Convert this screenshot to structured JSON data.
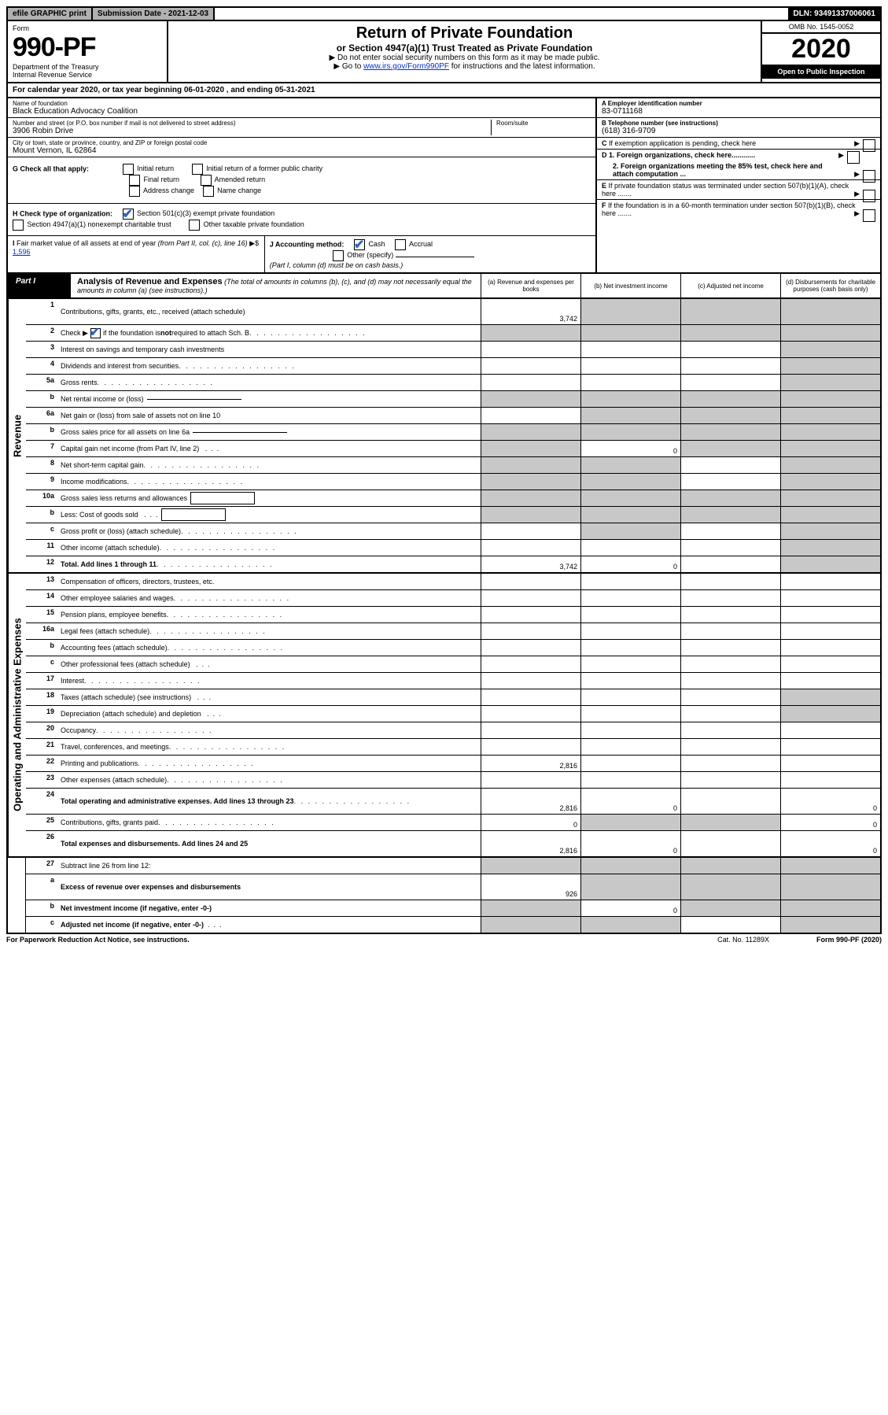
{
  "colors": {
    "black": "#000000",
    "white": "#ffffff",
    "gray_header": "#b0b0b0",
    "gray_shade": "#c8c8c8",
    "blue_check": "#2962c9",
    "link": "#0033cc"
  },
  "top_bar": {
    "efile": "efile GRAPHIC print",
    "submission": "Submission Date - 2021-12-03",
    "dln": "DLN: 93491337006061"
  },
  "header": {
    "form_word": "Form",
    "form_no": "990-PF",
    "dept": "Department of the Treasury",
    "irs": "Internal Revenue Service",
    "title": "Return of Private Foundation",
    "subtitle": "or Section 4947(a)(1) Trust Treated as Private Foundation",
    "note1": "▶ Do not enter social security numbers on this form as it may be made public.",
    "note2_pre": "▶ Go to ",
    "note2_link": "www.irs.gov/Form990PF",
    "note2_post": " for instructions and the latest information.",
    "omb": "OMB No. 1545-0052",
    "year": "2020",
    "open": "Open to Public Inspection"
  },
  "calendar_line": "For calendar year 2020, or tax year beginning 06-01-2020              , and ending 05-31-2021",
  "info": {
    "name_lbl": "Name of foundation",
    "name_val": "Black Education Advocacy Coalition",
    "addr_lbl": "Number and street (or P.O. box number if mail is not delivered to street address)",
    "addr_val": "3906 Robin Drive",
    "room_lbl": "Room/suite",
    "city_lbl": "City or town, state or province, country, and ZIP or foreign postal code",
    "city_val": "Mount Vernon, IL  62864",
    "a_lbl": "A Employer identification number",
    "a_val": "83-0711168",
    "b_lbl": "B Telephone number (see instructions)",
    "b_val": "(618) 316-9709",
    "c_lbl": "C If exemption application is pending, check here",
    "g_lbl": "G Check all that apply:",
    "g_opts": [
      "Initial return",
      "Initial return of a former public charity",
      "Final return",
      "Amended return",
      "Address change",
      "Name change"
    ],
    "d1": "D 1. Foreign organizations, check here............",
    "d2": "2. Foreign organizations meeting the 85% test, check here and attach computation ...",
    "h_lbl": "H Check type of organization:",
    "h_opt1": "Section 501(c)(3) exempt private foundation",
    "h_opt2": "Section 4947(a)(1) nonexempt charitable trust",
    "h_opt3": "Other taxable private foundation",
    "e_lbl": "E If private foundation status was terminated under section 507(b)(1)(A), check here .......",
    "i_lbl": "I Fair market value of all assets at end of year (from Part II, col. (c), line 16) ▶$ ",
    "i_val": "1,596",
    "j_lbl": "J Accounting method:",
    "j_cash": "Cash",
    "j_accrual": "Accrual",
    "j_other": "Other (specify)",
    "j_note": "(Part I, column (d) must be on cash basis.)",
    "f_lbl": "F If the foundation is in a 60-month termination under section 507(b)(1)(B), check here ......."
  },
  "part1": {
    "label": "Part I",
    "title": "Analysis of Revenue and Expenses",
    "title_note": " (The total of amounts in columns (b), (c), and (d) may not necessarily equal the amounts in column (a) (see instructions).)",
    "col_a": "(a)   Revenue and expenses per books",
    "col_b": "(b)   Net investment income",
    "col_c": "(c)   Adjusted net income",
    "col_d": "(d)   Disbursements for charitable purposes (cash basis only)"
  },
  "side_labels": {
    "revenue": "Revenue",
    "expenses": "Operating and Administrative Expenses"
  },
  "rows": [
    {
      "n": "1",
      "d": "Contributions, gifts, grants, etc., received (attach schedule)",
      "a": "3,742",
      "tall": true,
      "shade_b": true,
      "shade_c": true,
      "shade_d": true
    },
    {
      "n": "2",
      "d": "Check ▶ [CHK] if the foundation is not required to attach Sch. B",
      "bold_not": true,
      "shade_a": true,
      "shade_b": true,
      "shade_c": true,
      "shade_d": true,
      "has_check": true,
      "check_checked": true,
      "dots": true
    },
    {
      "n": "3",
      "d": "Interest on savings and temporary cash investments",
      "shade_d": true
    },
    {
      "n": "4",
      "d": "Dividends and interest from securities",
      "dots": true,
      "shade_d": true,
      "dots_short": true
    },
    {
      "n": "5a",
      "d": "Gross rents",
      "dots": true,
      "shade_d": true
    },
    {
      "n": "b",
      "d": "Net rental income or (loss)",
      "uline": true,
      "shade_a": true,
      "shade_b": true,
      "shade_c": true,
      "shade_d": true
    },
    {
      "n": "6a",
      "d": "Net gain or (loss) from sale of assets not on line 10",
      "shade_b": true,
      "shade_c": true,
      "shade_d": true
    },
    {
      "n": "b",
      "d": "Gross sales price for all assets on line 6a",
      "uline": true,
      "shade_a": true,
      "shade_b": true,
      "shade_c": true,
      "shade_d": true
    },
    {
      "n": "7",
      "d": "Capital gain net income (from Part IV, line 2)",
      "dots_short": true,
      "shade_a": true,
      "b": "0",
      "shade_c": true,
      "shade_d": true
    },
    {
      "n": "8",
      "d": "Net short-term capital gain",
      "dots": true,
      "shade_a": true,
      "shade_b": true,
      "shade_d": true
    },
    {
      "n": "9",
      "d": "Income modifications",
      "dots": true,
      "shade_a": true,
      "shade_b": true,
      "shade_d": true
    },
    {
      "n": "10a",
      "d": "Gross sales less returns and allowances",
      "inline_box": true,
      "shade_a": true,
      "shade_b": true,
      "shade_c": true,
      "shade_d": true
    },
    {
      "n": "b",
      "d": "Less: Cost of goods sold",
      "dots_short": true,
      "inline_box": true,
      "shade_a": true,
      "shade_b": true,
      "shade_c": true,
      "shade_d": true
    },
    {
      "n": "c",
      "d": "Gross profit or (loss) (attach schedule)",
      "dots": true,
      "shade_b": true,
      "shade_d": true
    },
    {
      "n": "11",
      "d": "Other income (attach schedule)",
      "dots": true,
      "shade_d": true
    },
    {
      "n": "12",
      "d": "Total. Add lines 1 through 11",
      "bold": true,
      "dots": true,
      "a": "3,742",
      "b": "0",
      "shade_d": true
    }
  ],
  "rows_exp": [
    {
      "n": "13",
      "d": "Compensation of officers, directors, trustees, etc."
    },
    {
      "n": "14",
      "d": "Other employee salaries and wages",
      "dots": true
    },
    {
      "n": "15",
      "d": "Pension plans, employee benefits",
      "dots": true
    },
    {
      "n": "16a",
      "d": "Legal fees (attach schedule)",
      "dots": true
    },
    {
      "n": "b",
      "d": "Accounting fees (attach schedule)",
      "dots": true
    },
    {
      "n": "c",
      "d": "Other professional fees (attach schedule)",
      "dots_short": true
    },
    {
      "n": "17",
      "d": "Interest",
      "dots": true
    },
    {
      "n": "18",
      "d": "Taxes (attach schedule) (see instructions)",
      "dots_short": true,
      "shade_d": true
    },
    {
      "n": "19",
      "d": "Depreciation (attach schedule) and depletion",
      "dots_short": true,
      "shade_d": true
    },
    {
      "n": "20",
      "d": "Occupancy",
      "dots": true
    },
    {
      "n": "21",
      "d": "Travel, conferences, and meetings",
      "dots": true
    },
    {
      "n": "22",
      "d": "Printing and publications",
      "dots": true,
      "a": "2,816"
    },
    {
      "n": "23",
      "d": "Other expenses (attach schedule)",
      "dots": true
    },
    {
      "n": "24",
      "d": "Total operating and administrative expenses. Add lines 13 through 23",
      "bold": true,
      "dots": true,
      "a": "2,816",
      "b": "0",
      "dv": "0",
      "tall": true
    },
    {
      "n": "25",
      "d": "Contributions, gifts, grants paid",
      "dots": true,
      "a": "0",
      "shade_b": true,
      "shade_c": true,
      "dv": "0"
    },
    {
      "n": "26",
      "d": "Total expenses and disbursements. Add lines 24 and 25",
      "bold": true,
      "a": "2,816",
      "b": "0",
      "dv": "0",
      "tall": true
    }
  ],
  "rows_net": [
    {
      "n": "27",
      "d": "Subtract line 26 from line 12:",
      "shade_a": true,
      "shade_b": true,
      "shade_c": true,
      "shade_d": true
    },
    {
      "n": "a",
      "d": "Excess of revenue over expenses and disbursements",
      "bold": true,
      "a": "926",
      "shade_b": true,
      "shade_c": true,
      "shade_d": true,
      "tall": true
    },
    {
      "n": "b",
      "d": "Net investment income (if negative, enter -0-)",
      "bold": true,
      "shade_a": true,
      "b": "0",
      "shade_c": true,
      "shade_d": true
    },
    {
      "n": "c",
      "d": "Adjusted net income (if negative, enter -0-)",
      "bold": true,
      "dots_short": true,
      "shade_a": true,
      "shade_b": true,
      "shade_d": true
    }
  ],
  "footer": {
    "left": "For Paperwork Reduction Act Notice, see instructions.",
    "mid": "Cat. No. 11289X",
    "right": "Form 990-PF (2020)"
  }
}
